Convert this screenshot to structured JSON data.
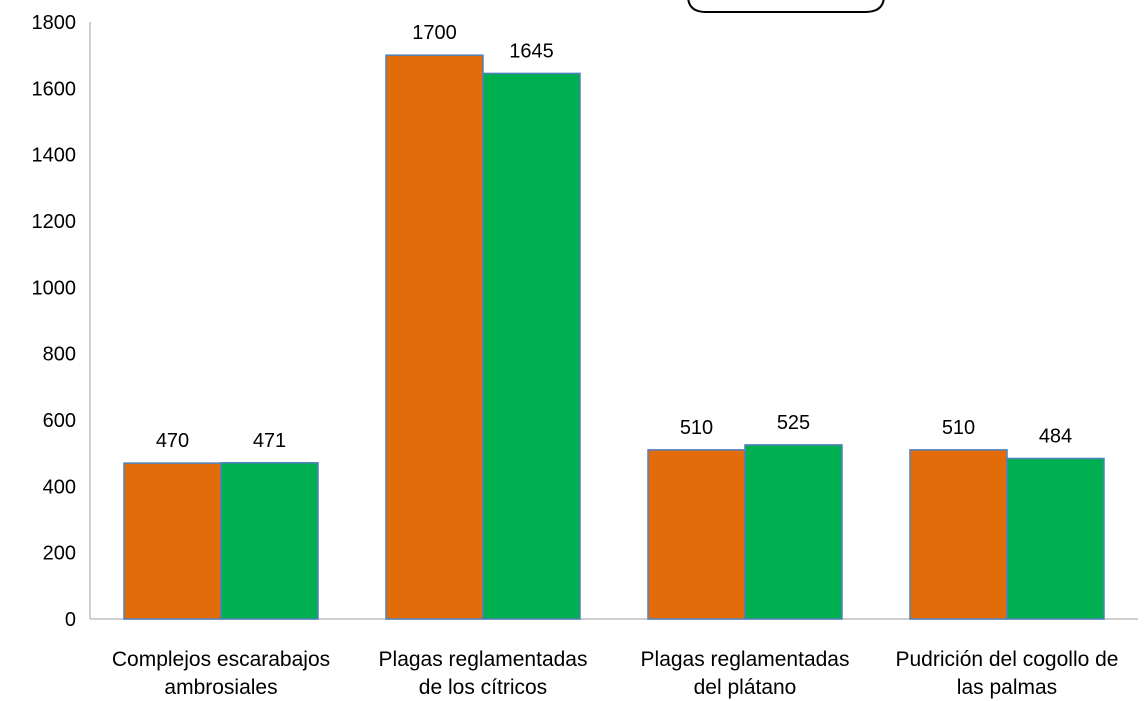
{
  "chart_data": {
    "type": "bar",
    "categories": [
      [
        "Complejos escarabajos",
        "ambrosiales"
      ],
      [
        "Plagas reglamentadas",
        "de los cítricos"
      ],
      [
        "Plagas reglamentadas",
        "del plátano"
      ],
      [
        "Pudrición del cogollo de",
        "las palmas"
      ]
    ],
    "series": [
      {
        "values": [
          470,
          1700,
          510,
          510
        ],
        "color": "#E36C0A"
      },
      {
        "values": [
          471,
          1645,
          525,
          484
        ],
        "color": "#00B050"
      }
    ],
    "ylim": [
      0,
      1800
    ],
    "yticks": [
      0,
      200,
      400,
      600,
      800,
      1000,
      1200,
      1400,
      1600,
      1800
    ],
    "grid": false,
    "bar_outline_color": "#4F81BD",
    "legend": "top-center, partially visible, no readable entries"
  }
}
